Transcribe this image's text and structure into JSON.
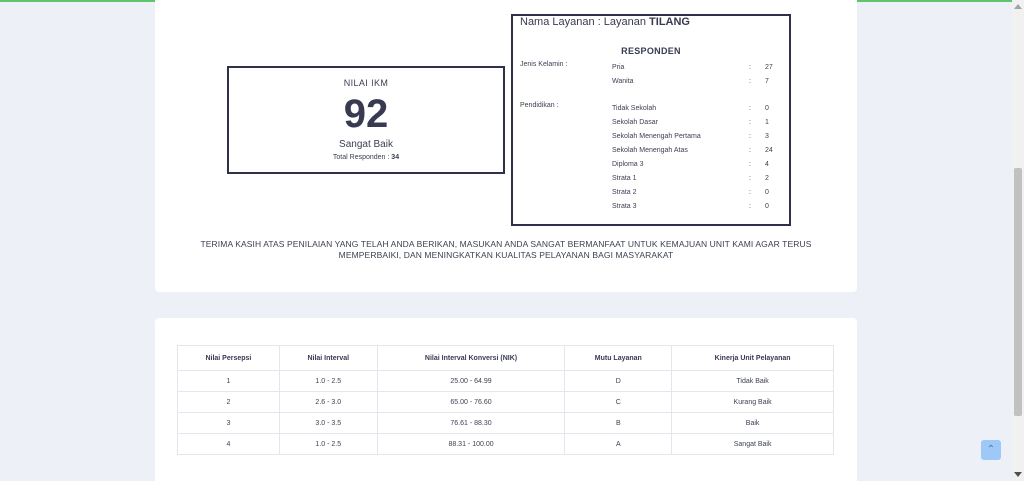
{
  "ikm": {
    "title": "NILAI IKM",
    "value": "92",
    "grade": "Sangat Baik",
    "total_label": "Total Responden :",
    "total_value": "34"
  },
  "respondents": {
    "service_label": "Nama Layanan : Layanan",
    "service_name": "TILANG",
    "heading": "RESPONDEN",
    "gender_label": "Jenis Kelamin :",
    "gender": [
      {
        "name": "Pria",
        "value": "27"
      },
      {
        "name": "Wanita",
        "value": "7"
      }
    ],
    "education_label": "Pendidikan :",
    "education": [
      {
        "name": "Tidak Sekolah",
        "value": "0"
      },
      {
        "name": "Sekolah Dasar",
        "value": "1"
      },
      {
        "name": "Sekolah Menengah Pertama",
        "value": "3"
      },
      {
        "name": "Sekolah Menengah Atas",
        "value": "24"
      },
      {
        "name": "Diploma 3",
        "value": "4"
      },
      {
        "name": "Strata 1",
        "value": "2"
      },
      {
        "name": "Strata 2",
        "value": "0"
      },
      {
        "name": "Strata 3",
        "value": "0"
      }
    ],
    "separator": ":"
  },
  "thanks": {
    "line1": "TERIMA KASIH ATAS PENILAIAN YANG TELAH ANDA BERIKAN, MASUKAN ANDA SANGAT BERMANFAAT UNTUK KEMAJUAN UNIT KAMI AGAR TERUS",
    "line2": "MEMPERBAIKI, DAN MENINGKATKAN KUALITAS PELAYANAN BAGI MASYARAKAT"
  },
  "table": {
    "headers": [
      "Nilai Persepsi",
      "Nilai Interval",
      "Nilai Interval Konversi (NIK)",
      "Mutu Layanan",
      "Kinerja Unit Pelayanan"
    ],
    "rows": [
      [
        "1",
        "1.0 - 2.5",
        "25.00 - 64.99",
        "D",
        "Tidak Baik"
      ],
      [
        "2",
        "2.6 - 3.0",
        "65.00 - 76.60",
        "C",
        "Kurang Baik"
      ],
      [
        "3",
        "3.0 - 3.5",
        "76.61 - 88.30",
        "B",
        "Baik"
      ],
      [
        "4",
        "1.0 - 2.5",
        "88.31 - 100.00",
        "A",
        "Sangat Baik"
      ]
    ]
  },
  "scroll_top_icon": "chevron-up-icon",
  "colors": {
    "accent_line": "#5fc46c",
    "scroll_top_bg": "#9ec8f5"
  }
}
